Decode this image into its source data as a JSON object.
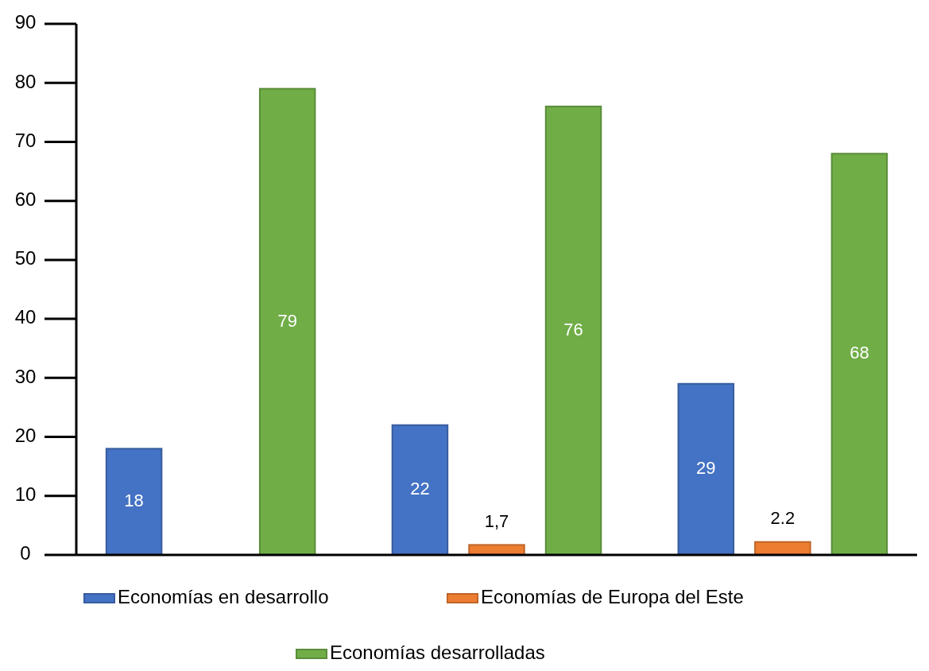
{
  "chart_data": {
    "type": "bar",
    "categories": [
      null,
      null,
      null
    ],
    "series": [
      {
        "name": "Economías en desarrollo",
        "color": "#4472c4",
        "values": [
          18,
          22,
          29
        ],
        "value_labels": [
          "18",
          "22",
          "29"
        ]
      },
      {
        "name": "Economías de Europa del Este",
        "color": "#ed7d31",
        "values": [
          null,
          1.7,
          2.2
        ],
        "value_labels": [
          null,
          "1,7",
          "2.2"
        ]
      },
      {
        "name": "Economías desarrolladas",
        "color": "#70ad47",
        "values": [
          79,
          76,
          68
        ],
        "value_labels": [
          "79",
          "76",
          "68"
        ]
      }
    ],
    "ylim": [
      0,
      90
    ],
    "yticks": [
      0,
      10,
      20,
      30,
      40,
      50,
      60,
      70,
      80,
      90
    ],
    "grid": false,
    "legend": "bottom"
  }
}
